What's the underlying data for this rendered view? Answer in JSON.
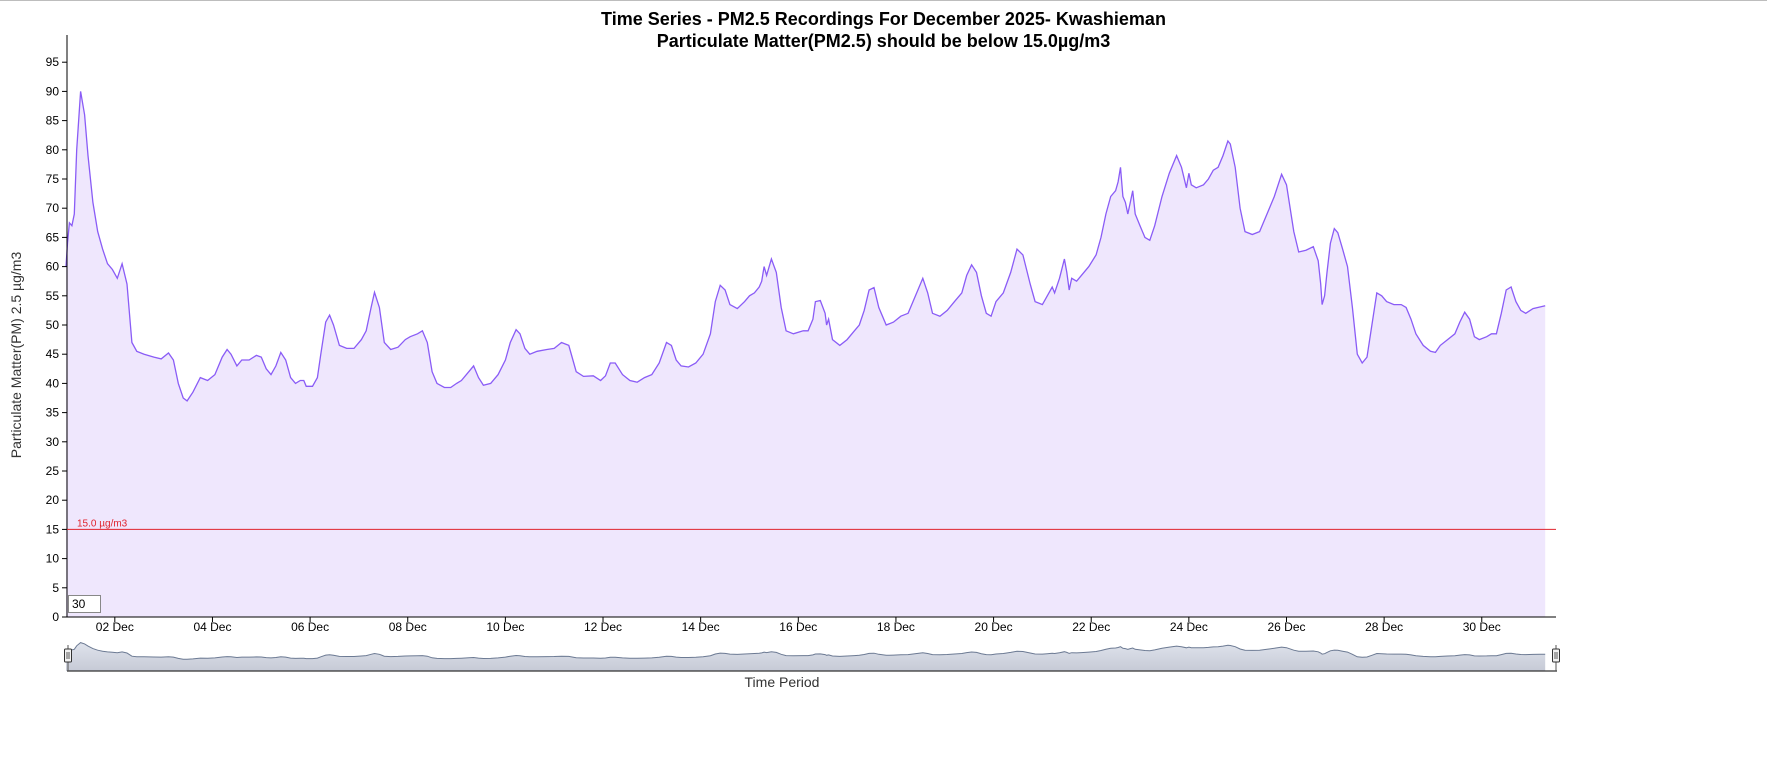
{
  "colors": {
    "line": "#8a5cf6",
    "area": "#efe7fd",
    "threshold": "#e0232d",
    "subtitle": "#f0141e",
    "axis": "#000000",
    "navigator_fill": "#c6cad6",
    "navigator_line": "#6c7a93"
  },
  "chart_data": {
    "type": "area",
    "title": "Time Series - PM2.5 Recordings For December 2025- Kwashieman",
    "subtitle": "Particulate Matter(PM2.5) should be below 15.0µg/m3",
    "xlabel": "Time Period",
    "ylabel": "Particulate Matter(PM) 2.5 µg/m3",
    "ylim": [
      0,
      100
    ],
    "yticks": [
      0,
      5,
      10,
      15,
      20,
      25,
      30,
      35,
      40,
      45,
      50,
      55,
      60,
      65,
      70,
      75,
      80,
      85,
      90,
      95
    ],
    "xlim": [
      1.0,
      31.5
    ],
    "x_unit": "day of December 2025",
    "xticks": [
      {
        "x": 2,
        "label": "02 Dec"
      },
      {
        "x": 4,
        "label": "04 Dec"
      },
      {
        "x": 6,
        "label": "06 Dec"
      },
      {
        "x": 8,
        "label": "08 Dec"
      },
      {
        "x": 10,
        "label": "10 Dec"
      },
      {
        "x": 12,
        "label": "12 Dec"
      },
      {
        "x": 14,
        "label": "14 Dec"
      },
      {
        "x": 16,
        "label": "16 Dec"
      },
      {
        "x": 18,
        "label": "18 Dec"
      },
      {
        "x": 20,
        "label": "20 Dec"
      },
      {
        "x": 22,
        "label": "22 Dec"
      },
      {
        "x": 24,
        "label": "24 Dec"
      },
      {
        "x": 26,
        "label": "26 Dec"
      },
      {
        "x": 28,
        "label": "28 Dec"
      },
      {
        "x": 30,
        "label": "30 Dec"
      }
    ],
    "threshold": {
      "value": 15,
      "label": "15.0 µg/m3"
    },
    "range_box": "30",
    "grid": false,
    "legend": "none",
    "series": [
      {
        "points": [
          [
            1.0,
            60
          ],
          [
            1.03,
            64
          ],
          [
            1.07,
            67.5
          ],
          [
            1.12,
            67
          ],
          [
            1.17,
            69
          ],
          [
            1.22,
            80
          ],
          [
            1.3,
            90
          ],
          [
            1.38,
            86
          ],
          [
            1.45,
            79
          ],
          [
            1.55,
            71
          ],
          [
            1.65,
            66
          ],
          [
            1.75,
            63
          ],
          [
            1.85,
            60.5
          ],
          [
            1.95,
            59.5
          ],
          [
            2.05,
            58
          ],
          [
            2.15,
            60.5
          ],
          [
            2.25,
            57
          ],
          [
            2.35,
            47
          ],
          [
            2.45,
            45.5
          ],
          [
            2.6,
            45
          ],
          [
            2.8,
            44.5
          ],
          [
            2.95,
            44.2
          ],
          [
            3.1,
            45.2
          ],
          [
            3.2,
            44
          ],
          [
            3.3,
            40
          ],
          [
            3.4,
            37.5
          ],
          [
            3.48,
            37
          ],
          [
            3.6,
            38.5
          ],
          [
            3.75,
            41
          ],
          [
            3.9,
            40.5
          ],
          [
            4.05,
            41.5
          ],
          [
            4.2,
            44.5
          ],
          [
            4.3,
            45.8
          ],
          [
            4.38,
            45
          ],
          [
            4.5,
            43
          ],
          [
            4.6,
            44
          ],
          [
            4.75,
            44
          ],
          [
            4.9,
            44.8
          ],
          [
            5.0,
            44.5
          ],
          [
            5.1,
            42.5
          ],
          [
            5.2,
            41.5
          ],
          [
            5.3,
            43
          ],
          [
            5.4,
            45.3
          ],
          [
            5.5,
            44
          ],
          [
            5.6,
            41
          ],
          [
            5.7,
            40
          ],
          [
            5.8,
            40.5
          ],
          [
            5.87,
            40.5
          ],
          [
            5.92,
            39.5
          ],
          [
            6.05,
            39.5
          ],
          [
            6.15,
            41
          ],
          [
            6.22,
            45
          ],
          [
            6.32,
            50.5
          ],
          [
            6.4,
            51.7
          ],
          [
            6.48,
            50
          ],
          [
            6.6,
            46.5
          ],
          [
            6.75,
            46
          ],
          [
            6.9,
            46
          ],
          [
            7.05,
            47.5
          ],
          [
            7.15,
            49
          ],
          [
            7.25,
            53
          ],
          [
            7.32,
            55.6
          ],
          [
            7.42,
            53
          ],
          [
            7.52,
            47
          ],
          [
            7.65,
            45.8
          ],
          [
            7.8,
            46.2
          ],
          [
            7.95,
            47.5
          ],
          [
            8.05,
            48
          ],
          [
            8.2,
            48.5
          ],
          [
            8.3,
            49
          ],
          [
            8.4,
            47
          ],
          [
            8.5,
            42
          ],
          [
            8.6,
            40
          ],
          [
            8.75,
            39.3
          ],
          [
            8.88,
            39.3
          ],
          [
            9.0,
            40
          ],
          [
            9.1,
            40.5
          ],
          [
            9.25,
            42
          ],
          [
            9.35,
            43
          ],
          [
            9.45,
            41
          ],
          [
            9.55,
            39.7
          ],
          [
            9.7,
            40
          ],
          [
            9.85,
            41.5
          ],
          [
            10.0,
            44
          ],
          [
            10.1,
            47
          ],
          [
            10.22,
            49.2
          ],
          [
            10.3,
            48.5
          ],
          [
            10.4,
            46
          ],
          [
            10.5,
            45
          ],
          [
            10.65,
            45.5
          ],
          [
            10.85,
            45.8
          ],
          [
            11.0,
            46
          ],
          [
            11.15,
            47
          ],
          [
            11.3,
            46.5
          ],
          [
            11.45,
            42
          ],
          [
            11.6,
            41.2
          ],
          [
            11.8,
            41.3
          ],
          [
            11.95,
            40.5
          ],
          [
            12.05,
            41.3
          ],
          [
            12.15,
            43.5
          ],
          [
            12.25,
            43.5
          ],
          [
            12.4,
            41.5
          ],
          [
            12.55,
            40.5
          ],
          [
            12.7,
            40.2
          ],
          [
            12.85,
            41
          ],
          [
            13.0,
            41.5
          ],
          [
            13.15,
            43.5
          ],
          [
            13.3,
            47
          ],
          [
            13.4,
            46.5
          ],
          [
            13.5,
            44
          ],
          [
            13.6,
            43
          ],
          [
            13.75,
            42.8
          ],
          [
            13.9,
            43.5
          ],
          [
            14.05,
            45
          ],
          [
            14.2,
            48.5
          ],
          [
            14.3,
            54
          ],
          [
            14.4,
            56.8
          ],
          [
            14.5,
            56
          ],
          [
            14.6,
            53.5
          ],
          [
            14.75,
            52.8
          ],
          [
            14.9,
            54
          ],
          [
            15.0,
            55
          ],
          [
            15.1,
            55.5
          ],
          [
            15.2,
            56.5
          ],
          [
            15.25,
            57.5
          ],
          [
            15.3,
            60
          ],
          [
            15.35,
            58.5
          ],
          [
            15.45,
            61.3
          ],
          [
            15.55,
            59
          ],
          [
            15.65,
            53
          ],
          [
            15.75,
            49
          ],
          [
            15.9,
            48.5
          ],
          [
            16.1,
            49
          ],
          [
            16.2,
            49
          ],
          [
            16.3,
            51
          ],
          [
            16.35,
            54
          ],
          [
            16.45,
            54.2
          ],
          [
            16.55,
            52
          ],
          [
            16.58,
            50
          ],
          [
            16.62,
            51
          ],
          [
            16.7,
            47.5
          ],
          [
            16.85,
            46.5
          ],
          [
            17.0,
            47.5
          ],
          [
            17.15,
            49
          ],
          [
            17.25,
            50
          ],
          [
            17.35,
            52.5
          ],
          [
            17.45,
            56
          ],
          [
            17.55,
            56.4
          ],
          [
            17.65,
            53
          ],
          [
            17.8,
            50
          ],
          [
            17.95,
            50.5
          ],
          [
            18.1,
            51.5
          ],
          [
            18.25,
            52
          ],
          [
            18.35,
            54
          ],
          [
            18.45,
            56
          ],
          [
            18.55,
            58
          ],
          [
            18.65,
            55.5
          ],
          [
            18.75,
            52
          ],
          [
            18.9,
            51.5
          ],
          [
            19.05,
            52.5
          ],
          [
            19.2,
            54
          ],
          [
            19.35,
            55.5
          ],
          [
            19.45,
            58.5
          ],
          [
            19.55,
            60.3
          ],
          [
            19.65,
            59
          ],
          [
            19.75,
            55
          ],
          [
            19.85,
            52
          ],
          [
            19.95,
            51.5
          ],
          [
            20.05,
            54
          ],
          [
            20.2,
            55.5
          ],
          [
            20.35,
            59
          ],
          [
            20.48,
            63
          ],
          [
            20.6,
            62
          ],
          [
            20.75,
            57
          ],
          [
            20.85,
            54
          ],
          [
            21.0,
            53.5
          ],
          [
            21.1,
            55
          ],
          [
            21.2,
            56.5
          ],
          [
            21.25,
            55.5
          ],
          [
            21.35,
            58
          ],
          [
            21.45,
            61.3
          ],
          [
            21.5,
            59
          ],
          [
            21.55,
            56
          ],
          [
            21.6,
            58
          ],
          [
            21.7,
            57.5
          ],
          [
            21.8,
            58.5
          ],
          [
            21.95,
            60
          ],
          [
            22.1,
            62
          ],
          [
            22.2,
            65
          ],
          [
            22.3,
            69
          ],
          [
            22.4,
            72
          ],
          [
            22.5,
            73
          ],
          [
            22.55,
            74.5
          ],
          [
            22.6,
            77
          ],
          [
            22.65,
            72
          ],
          [
            22.7,
            71
          ],
          [
            22.75,
            69
          ],
          [
            22.8,
            71
          ],
          [
            22.85,
            73
          ],
          [
            22.9,
            69
          ],
          [
            23.0,
            67
          ],
          [
            23.1,
            65
          ],
          [
            23.2,
            64.5
          ],
          [
            23.3,
            67
          ],
          [
            23.45,
            72
          ],
          [
            23.6,
            76
          ],
          [
            23.75,
            79
          ],
          [
            23.85,
            77
          ],
          [
            23.95,
            73.5
          ],
          [
            24.0,
            76
          ],
          [
            24.05,
            74
          ],
          [
            24.15,
            73.5
          ],
          [
            24.3,
            74
          ],
          [
            24.4,
            75
          ],
          [
            24.5,
            76.5
          ],
          [
            24.6,
            77
          ],
          [
            24.7,
            79
          ],
          [
            24.8,
            81.5
          ],
          [
            24.85,
            81
          ],
          [
            24.95,
            77
          ],
          [
            25.05,
            70
          ],
          [
            25.15,
            66
          ],
          [
            25.3,
            65.5
          ],
          [
            25.45,
            66
          ],
          [
            25.6,
            69
          ],
          [
            25.75,
            72
          ],
          [
            25.9,
            75.8
          ],
          [
            26.0,
            74
          ],
          [
            26.15,
            66
          ],
          [
            26.25,
            62.5
          ],
          [
            26.4,
            62.8
          ],
          [
            26.55,
            63.4
          ],
          [
            26.65,
            61
          ],
          [
            26.7,
            57
          ],
          [
            26.73,
            53.5
          ],
          [
            26.78,
            55
          ],
          [
            26.83,
            59
          ],
          [
            26.9,
            64
          ],
          [
            26.98,
            66.5
          ],
          [
            27.05,
            65.8
          ],
          [
            27.15,
            63
          ],
          [
            27.25,
            60
          ],
          [
            27.35,
            53
          ],
          [
            27.45,
            45
          ],
          [
            27.55,
            43.5
          ],
          [
            27.65,
            44.5
          ],
          [
            27.75,
            50
          ],
          [
            27.85,
            55.5
          ],
          [
            27.95,
            55
          ],
          [
            28.05,
            54
          ],
          [
            28.2,
            53.5
          ],
          [
            28.35,
            53.5
          ],
          [
            28.45,
            53
          ],
          [
            28.55,
            51
          ],
          [
            28.65,
            48.5
          ],
          [
            28.8,
            46.5
          ],
          [
            28.95,
            45.5
          ],
          [
            29.05,
            45.3
          ],
          [
            29.15,
            46.5
          ],
          [
            29.3,
            47.5
          ],
          [
            29.45,
            48.5
          ],
          [
            29.55,
            50.5
          ],
          [
            29.65,
            52.2
          ],
          [
            29.75,
            51
          ],
          [
            29.85,
            48
          ],
          [
            29.95,
            47.5
          ],
          [
            30.1,
            48
          ],
          [
            30.2,
            48.5
          ],
          [
            30.3,
            48.5
          ],
          [
            30.4,
            52
          ],
          [
            30.5,
            56
          ],
          [
            30.6,
            56.5
          ],
          [
            30.7,
            54
          ],
          [
            30.8,
            52.5
          ],
          [
            30.9,
            52
          ],
          [
            31.05,
            52.8
          ],
          [
            31.2,
            53.1
          ],
          [
            31.3,
            53.3
          ]
        ]
      }
    ]
  }
}
